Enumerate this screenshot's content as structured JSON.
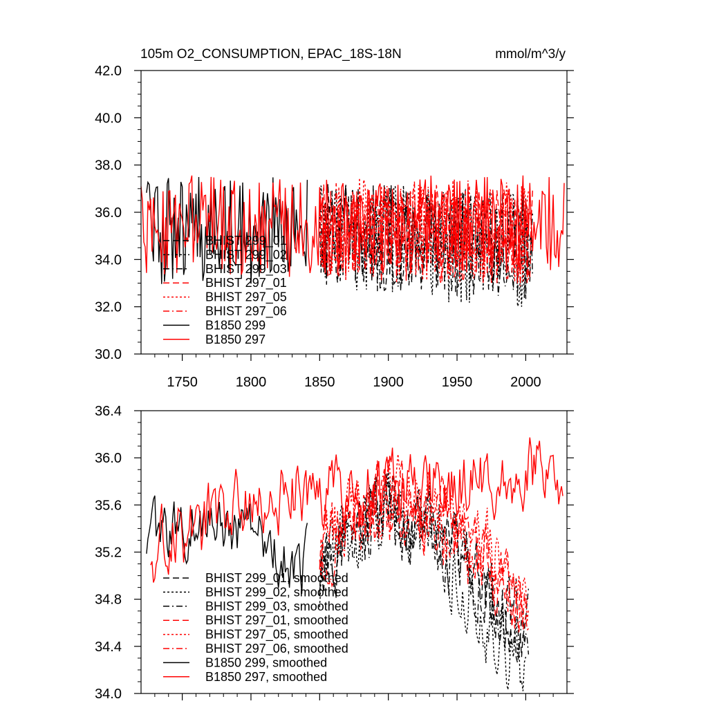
{
  "figure": {
    "title": "105m O2_CONSUMPTION, EPAC_18S-18N",
    "units": "mmol/m^3/y"
  },
  "chart_data": [
    {
      "type": "line",
      "panel": "top",
      "title": "105m O2_CONSUMPTION, EPAC_18S-18N",
      "units": "mmol/m^3/y",
      "xlim": [
        1720,
        2030
      ],
      "ylim": [
        30.0,
        42.0
      ],
      "xticks": [
        1750,
        1800,
        1850,
        1900,
        1950,
        2000
      ],
      "xtick_labels": [
        "1750",
        "1800",
        "1850",
        "1900",
        "1950",
        "2000"
      ],
      "yticks": [
        30.0,
        32.0,
        34.0,
        36.0,
        38.0,
        40.0,
        42.0
      ],
      "ytick_labels": [
        "30.0",
        "32.0",
        "34.0",
        "36.0",
        "38.0",
        "40.0",
        "42.0"
      ],
      "legend_position": "lower-left",
      "series": [
        {
          "name": "BHIST 299_01",
          "color": "#000000",
          "dash": "long-dash",
          "x_start": 1850,
          "x_end": 2005,
          "mean": 35.0,
          "amp": 1.7,
          "trend": -0.4
        },
        {
          "name": "BHIST 299_02",
          "color": "#000000",
          "dash": "short-dash",
          "x_start": 1850,
          "x_end": 2005,
          "mean": 34.9,
          "amp": 1.8,
          "trend": -0.5
        },
        {
          "name": "BHIST 299_03",
          "color": "#000000",
          "dash": "dash-dot",
          "x_start": 1850,
          "x_end": 2005,
          "mean": 35.0,
          "amp": 1.7,
          "trend": -0.4
        },
        {
          "name": "BHIST 297_01",
          "color": "#ff0000",
          "dash": "long-dash",
          "x_start": 1850,
          "x_end": 2005,
          "mean": 35.3,
          "amp": 1.6,
          "trend": -0.3
        },
        {
          "name": "BHIST 297_05",
          "color": "#ff0000",
          "dash": "short-dash",
          "x_start": 1850,
          "x_end": 2005,
          "mean": 35.4,
          "amp": 1.6,
          "trend": -0.3
        },
        {
          "name": "BHIST 297_06",
          "color": "#ff0000",
          "dash": "dash-dot",
          "x_start": 1850,
          "x_end": 2005,
          "mean": 35.3,
          "amp": 1.6,
          "trend": -0.3
        },
        {
          "name": "B1850 299",
          "color": "#000000",
          "dash": "solid",
          "x_start": 1724,
          "x_end": 1841,
          "mean": 35.2,
          "amp": 1.7,
          "trend": 0.0
        },
        {
          "name": "B1850 297",
          "color": "#ff0000",
          "dash": "solid",
          "x_start": 1720,
          "x_end": 2028,
          "mean": 35.4,
          "amp": 1.6,
          "trend": 0.0
        }
      ]
    },
    {
      "type": "line",
      "panel": "bottom",
      "xlim": [
        1720,
        2030
      ],
      "ylim": [
        34.0,
        36.4
      ],
      "xticks": [
        1750,
        1800,
        1850,
        1900,
        1950,
        2000
      ],
      "yticks": [
        34.0,
        34.4,
        34.8,
        35.2,
        35.6,
        36.0,
        36.4
      ],
      "ytick_labels": [
        "34.0",
        "34.4",
        "34.8",
        "35.2",
        "35.6",
        "36.0",
        "36.4"
      ],
      "legend_position": "lower-left",
      "series": [
        {
          "name": "BHIST 299_01, smoothed",
          "color": "#000000",
          "dash": "long-dash",
          "x_start": 1850,
          "x_end": 2002,
          "start": 35.1,
          "peak": 35.55,
          "end": 34.5,
          "amp": 0.28
        },
        {
          "name": "BHIST 299_02, smoothed",
          "color": "#000000",
          "dash": "short-dash",
          "x_start": 1850,
          "x_end": 2000,
          "start": 35.0,
          "peak": 35.5,
          "end": 34.2,
          "amp": 0.3
        },
        {
          "name": "BHIST 299_03, smoothed",
          "color": "#000000",
          "dash": "dash-dot",
          "x_start": 1850,
          "x_end": 2002,
          "start": 35.1,
          "peak": 35.5,
          "end": 34.5,
          "amp": 0.28
        },
        {
          "name": "BHIST 297_01, smoothed",
          "color": "#ff0000",
          "dash": "long-dash",
          "x_start": 1850,
          "x_end": 2002,
          "start": 35.3,
          "peak": 35.7,
          "end": 34.7,
          "amp": 0.25
        },
        {
          "name": "BHIST 297_05, smoothed",
          "color": "#ff0000",
          "dash": "short-dash",
          "x_start": 1850,
          "x_end": 2002,
          "start": 35.3,
          "peak": 35.75,
          "end": 34.8,
          "amp": 0.25
        },
        {
          "name": "BHIST 297_06, smoothed",
          "color": "#ff0000",
          "dash": "dash-dot",
          "x_start": 1850,
          "x_end": 2002,
          "start": 35.2,
          "peak": 35.6,
          "end": 34.6,
          "amp": 0.25
        },
        {
          "name": "B1850 299, smoothed",
          "color": "#000000",
          "dash": "solid",
          "x_start": 1724,
          "x_end": 1841,
          "start": 35.3,
          "peak": 35.5,
          "end": 35.1,
          "amp": 0.22
        },
        {
          "name": "B1850 297, smoothed",
          "color": "#ff0000",
          "dash": "solid",
          "x_start": 1727,
          "x_end": 2027,
          "start": 35.2,
          "peak": 35.7,
          "end": 35.9,
          "amp": 0.25
        }
      ]
    }
  ]
}
